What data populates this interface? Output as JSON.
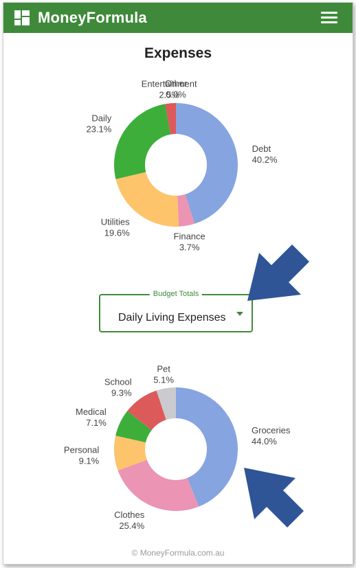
{
  "app": {
    "title": "MoneyFormula"
  },
  "page": {
    "title": "Expenses"
  },
  "budget_select": {
    "legend": "Budget Totals",
    "value": "Daily Living Expenses"
  },
  "footer": {
    "text": "© MoneyFormula.com.au"
  },
  "colors": {
    "brand": "#3f8a3a",
    "arrow": "#2f5597"
  },
  "chart_data": [
    {
      "type": "pie",
      "variant": "donut",
      "categories": [
        "Debt",
        "Finance",
        "Utilities",
        "Daily",
        "Entertainment",
        "Other"
      ],
      "values": [
        40.2,
        3.7,
        19.6,
        23.1,
        2.5,
        0.0
      ],
      "labels": [
        "40.2%",
        "3.7%",
        "19.6%",
        "23.1%",
        "2.5%",
        "0.0%"
      ],
      "colors": [
        "#86a4e0",
        "#eb94b3",
        "#fdc46b",
        "#3dae3a",
        "#dd5a5b",
        "#cbcbcf"
      ]
    },
    {
      "type": "pie",
      "variant": "donut",
      "categories": [
        "Groceries",
        "Clothes",
        "Personal",
        "Medical",
        "School",
        "Pet"
      ],
      "values": [
        44.0,
        25.4,
        9.1,
        7.1,
        9.3,
        5.1
      ],
      "labels": [
        "44.0%",
        "25.4%",
        "9.1%",
        "7.1%",
        "9.3%",
        "5.1%"
      ],
      "colors": [
        "#86a4e0",
        "#eb94b3",
        "#fdc46b",
        "#3dae3a",
        "#dd5a5b",
        "#cbcbcf"
      ]
    }
  ]
}
